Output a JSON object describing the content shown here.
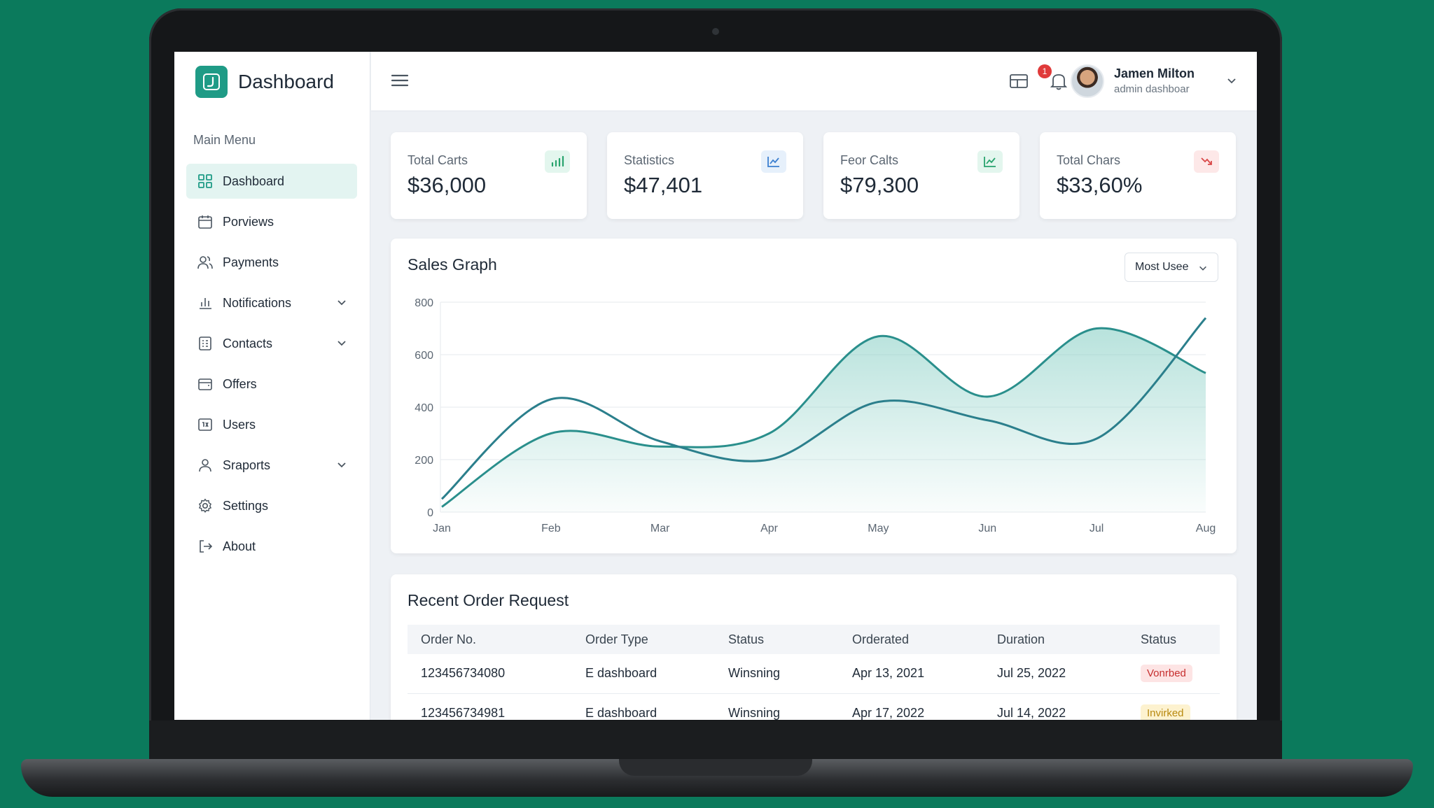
{
  "app": {
    "title": "Dashboard",
    "menu_heading": "Main Menu"
  },
  "sidebar": {
    "items": [
      {
        "label": "Dashboard",
        "icon": "grid-icon",
        "active": true,
        "chevron": false
      },
      {
        "label": "Porviews",
        "icon": "calendar-icon",
        "active": false,
        "chevron": false
      },
      {
        "label": "Payments",
        "icon": "users-icon",
        "active": false,
        "chevron": false
      },
      {
        "label": "Notifications",
        "icon": "bar-chart-icon",
        "active": false,
        "chevron": true
      },
      {
        "label": "Contacts",
        "icon": "contacts-icon",
        "active": false,
        "chevron": true
      },
      {
        "label": "Offers",
        "icon": "wallet-icon",
        "active": false,
        "chevron": false
      },
      {
        "label": "Users",
        "icon": "user-card-icon",
        "active": false,
        "chevron": false
      },
      {
        "label": "Sraports",
        "icon": "person-icon",
        "active": false,
        "chevron": true
      },
      {
        "label": "Settings",
        "icon": "gear-icon",
        "active": false,
        "chevron": false
      },
      {
        "label": "About",
        "icon": "logout-icon",
        "active": false,
        "chevron": false
      }
    ]
  },
  "header": {
    "notification_count": "1",
    "user": {
      "name": "Jamen Milton",
      "role": "admin dashboar"
    }
  },
  "stats": [
    {
      "label": "Total Carts",
      "value": "$36,000",
      "icon": "bar-chart-icon",
      "icon_bg": "#e3f6ee",
      "icon_color": "#27a36d"
    },
    {
      "label": "Statistics",
      "value": "$47,401",
      "icon": "trend-up-icon",
      "icon_bg": "#e6f0fb",
      "icon_color": "#3b7fd0"
    },
    {
      "label": "Feor Calts",
      "value": "$79,300",
      "icon": "trend-up-icon",
      "icon_bg": "#e3f6ee",
      "icon_color": "#27a36d"
    },
    {
      "label": "Total Chars",
      "value": "$33,60%",
      "icon": "trend-down-icon",
      "icon_bg": "#fde8e8",
      "icon_color": "#d94848"
    }
  ],
  "graph": {
    "title": "Sales Graph",
    "filter_label": "Most Usee"
  },
  "chart_data": {
    "type": "area",
    "categories": [
      "Jan",
      "Feb",
      "Mar",
      "Apr",
      "May",
      "Jun",
      "Jul",
      "Aug"
    ],
    "ylim": [
      0,
      800
    ],
    "yticks": [
      0,
      200,
      400,
      600,
      800
    ],
    "grid": true,
    "series": [
      {
        "values": [
          20,
          300,
          250,
          300,
          670,
          440,
          700,
          530
        ],
        "color": "#2a8f8c",
        "fill": true
      },
      {
        "values": [
          50,
          430,
          270,
          200,
          420,
          350,
          280,
          740
        ],
        "color": "#2b7f8c",
        "fill": false
      }
    ]
  },
  "orders": {
    "title": "Recent Order Request",
    "columns": [
      "Order No.",
      "Order Type",
      "Status",
      "Orderated",
      "Duration",
      "Status"
    ],
    "rows": [
      {
        "order_no": "123456734080",
        "type": "E dashboard",
        "status": "Winsning",
        "ordered": "Apr 13, 2021",
        "duration": "Jul 25, 2022",
        "badge": "Vonrbed",
        "badge_bg": "#fde4e4",
        "badge_color": "#c62e2e"
      },
      {
        "order_no": "123456734981",
        "type": "E dashboard",
        "status": "Winsning",
        "ordered": "Apr 17, 2022",
        "duration": "Jul 14, 2022",
        "badge": "Invirked",
        "badge_bg": "#fdf2cf",
        "badge_color": "#b8890f"
      }
    ]
  }
}
